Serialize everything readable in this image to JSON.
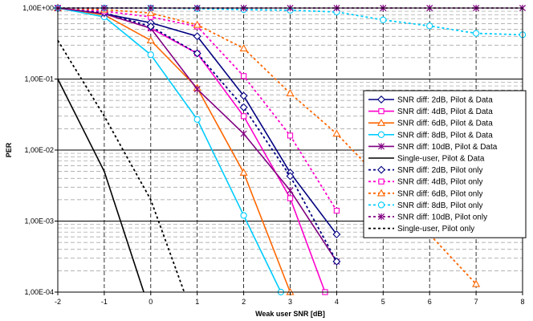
{
  "chart_data": {
    "type": "line",
    "xlabel": "Weak user SNR [dB]",
    "ylabel": "PER",
    "log_y": true,
    "xlim": [
      -2,
      8
    ],
    "ylim": [
      0.0001,
      1
    ],
    "x_ticks": [
      -2,
      -1,
      0,
      1,
      2,
      3,
      4,
      5,
      6,
      7,
      8
    ],
    "x_tick_labels": [
      "-2",
      "-1",
      "0",
      "1",
      "2",
      "3",
      "4",
      "5",
      "6",
      "7",
      "8"
    ],
    "y_ticks": [
      1,
      0.1,
      0.01,
      0.001,
      0.0001
    ],
    "y_tick_labels": [
      "1,00E+00",
      "1,00E-01",
      "1,00E-02",
      "1,00E-03",
      "1,00E-04"
    ],
    "grid": {
      "major_y": "solid",
      "minor_y": "dashed",
      "x": "dashed"
    },
    "legend_position": "right",
    "series": [
      {
        "name": "SNR diff: 2dB, Pilot & Data",
        "color": "#000080",
        "dash": "solid",
        "marker": "diamond",
        "x": [
          -2,
          -1,
          0,
          1,
          2,
          3,
          4
        ],
        "y": [
          1,
          0.83,
          0.62,
          0.4,
          0.058,
          0.0048,
          0.00065
        ]
      },
      {
        "name": "SNR diff: 4dB, Pilot & Data",
        "color": "#FF00CC",
        "dash": "solid",
        "marker": "square",
        "x": [
          -2,
          -1,
          0,
          1,
          2,
          3,
          3.75
        ],
        "y": [
          1,
          0.83,
          0.52,
          0.23,
          0.03,
          0.0021,
          0.0001
        ]
      },
      {
        "name": "SNR diff: 6dB, Pilot & Data",
        "color": "#FF6600",
        "dash": "solid",
        "marker": "triangle",
        "x": [
          -2,
          -1,
          0,
          1,
          2,
          3
        ],
        "y": [
          1,
          0.8,
          0.35,
          0.075,
          0.0048,
          0.0001
        ]
      },
      {
        "name": "SNR diff: 8dB, Pilot & Data",
        "color": "#00CCFF",
        "dash": "solid",
        "marker": "circle",
        "x": [
          -2,
          -1,
          0,
          1,
          2,
          2.8
        ],
        "y": [
          1,
          0.75,
          0.22,
          0.027,
          0.0012,
          0.0001
        ]
      },
      {
        "name": "SNR diff: 10dB, Pilot & Data",
        "color": "#800080",
        "dash": "solid",
        "marker": "star",
        "x": [
          -2,
          -1,
          0,
          1,
          2,
          3,
          4
        ],
        "y": [
          1,
          0.83,
          0.52,
          0.072,
          0.017,
          0.0027,
          0.00027
        ]
      },
      {
        "name": "Single-user, Pilot & Data",
        "color": "#000000",
        "dash": "solid",
        "marker": "none",
        "x": [
          -2,
          -1,
          -0.15
        ],
        "y": [
          0.1,
          0.005,
          0.0001
        ]
      },
      {
        "name": "SNR diff: 2dB, Pilot only",
        "color": "#000080",
        "dash": "dotted",
        "marker": "diamond",
        "x": [
          -2,
          -1,
          0,
          1,
          2,
          3,
          4
        ],
        "y": [
          1,
          0.86,
          0.55,
          0.23,
          0.04,
          0.0043,
          0.00027
        ]
      },
      {
        "name": "SNR diff: 4dB, Pilot only",
        "color": "#FF00CC",
        "dash": "dotted",
        "marker": "square",
        "x": [
          -2,
          -1,
          0,
          1,
          2,
          3,
          4
        ],
        "y": [
          1,
          0.9,
          0.75,
          0.55,
          0.11,
          0.016,
          0.0014
        ]
      },
      {
        "name": "SNR diff: 6dB, Pilot only",
        "color": "#FF6600",
        "dash": "dotted",
        "marker": "triangle",
        "x": [
          -2,
          -1,
          0,
          1,
          2,
          3,
          4,
          5,
          6,
          7
        ],
        "y": [
          1,
          0.95,
          0.85,
          0.58,
          0.27,
          0.063,
          0.017,
          0.0036,
          0.00065,
          0.00013
        ]
      },
      {
        "name": "SNR diff: 8dB, Pilot only",
        "color": "#00CCFF",
        "dash": "dotted",
        "marker": "circle",
        "x": [
          -2,
          -1,
          0,
          1,
          2,
          3,
          4,
          5,
          6,
          7,
          8
        ],
        "y": [
          1,
          1,
          1,
          0.98,
          0.95,
          0.93,
          0.88,
          0.68,
          0.56,
          0.44,
          0.42
        ]
      },
      {
        "name": "SNR diff: 10dB, Pilot only",
        "color": "#800080",
        "dash": "dotted",
        "marker": "star",
        "x": [
          -2,
          -1,
          0,
          1,
          2,
          3,
          4,
          5,
          6,
          7,
          8
        ],
        "y": [
          1,
          1,
          1,
          1,
          1,
          1,
          1,
          1,
          1,
          1,
          1
        ]
      },
      {
        "name": "Single-user, Pilot only",
        "color": "#000000",
        "dash": "dotted",
        "marker": "none",
        "x": [
          -2,
          -1,
          0,
          0.72
        ],
        "y": [
          0.35,
          0.03,
          0.002,
          0.0001
        ]
      }
    ]
  }
}
